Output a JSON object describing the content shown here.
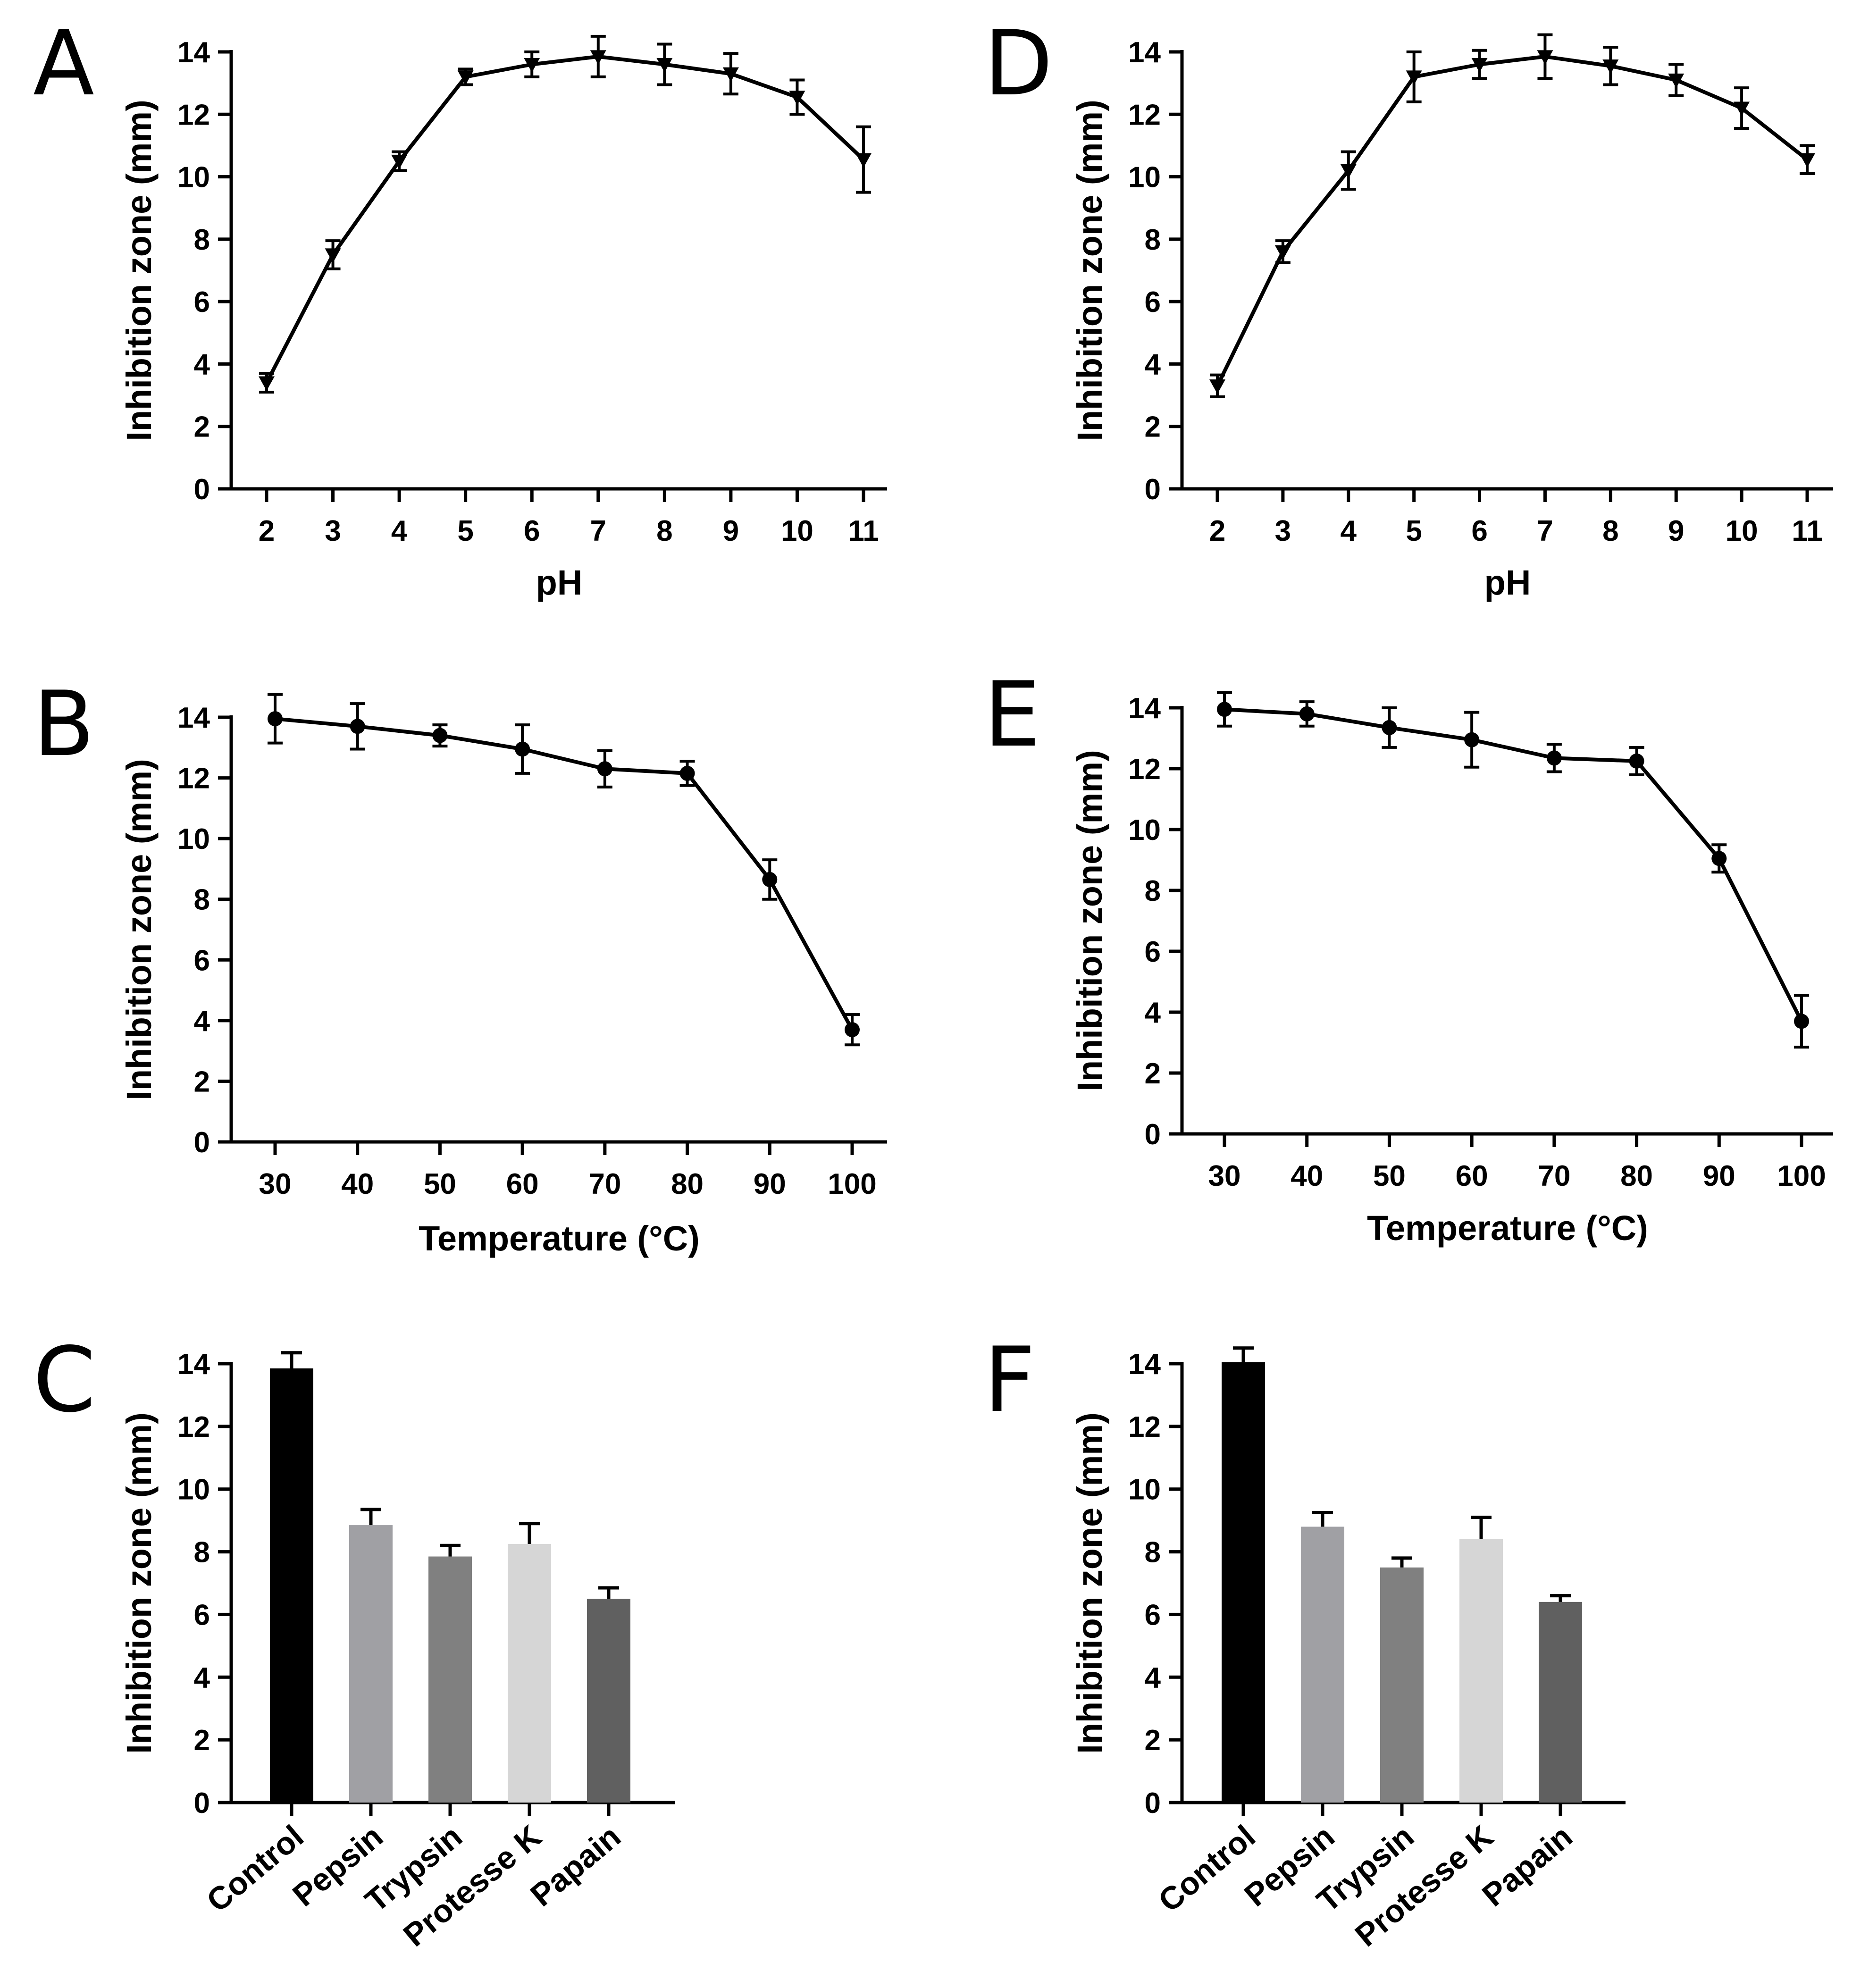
{
  "chart_data": [
    {
      "panel": "A",
      "type": "line",
      "marker": "triangle-down",
      "title": "",
      "xlabel": "pH",
      "ylabel": "Inhibition zone (mm)",
      "x": [
        2,
        3,
        4,
        5,
        6,
        7,
        8,
        9,
        10,
        11
      ],
      "values": [
        3.4,
        7.5,
        10.5,
        13.2,
        13.6,
        13.85,
        13.6,
        13.3,
        12.55,
        10.55
      ],
      "errors": [
        0.3,
        0.45,
        0.3,
        0.25,
        0.4,
        0.65,
        0.65,
        0.65,
        0.55,
        1.05
      ],
      "ylim": [
        0,
        14
      ],
      "yticks": [
        "0",
        "2",
        "4",
        "6",
        "8",
        "10",
        "12",
        "14"
      ],
      "xticks": [
        "2",
        "3",
        "4",
        "5",
        "6",
        "7",
        "8",
        "9",
        "10",
        "11"
      ]
    },
    {
      "panel": "B",
      "type": "line",
      "marker": "circle",
      "title": "",
      "xlabel": "Temperature (°C)",
      "ylabel": "Inhibition zone (mm)",
      "x": [
        30,
        40,
        50,
        60,
        70,
        80,
        90,
        100
      ],
      "values": [
        13.95,
        13.7,
        13.4,
        12.95,
        12.3,
        12.15,
        8.65,
        3.7
      ],
      "errors": [
        0.8,
        0.75,
        0.35,
        0.8,
        0.6,
        0.4,
        0.65,
        0.5
      ],
      "ylim": [
        0,
        14
      ],
      "yticks": [
        "0",
        "2",
        "4",
        "6",
        "8",
        "10",
        "12",
        "14"
      ],
      "xticks": [
        "30",
        "40",
        "50",
        "60",
        "70",
        "80",
        "90",
        "100"
      ]
    },
    {
      "panel": "C",
      "type": "bar",
      "title": "",
      "xlabel": "",
      "ylabel": "Inhibition zone (mm)",
      "categories": [
        "Control",
        "Pepsin",
        "Trypsin",
        "Protesse K",
        "Papain"
      ],
      "values": [
        13.85,
        8.85,
        7.85,
        8.25,
        6.5
      ],
      "errors": [
        0.5,
        0.5,
        0.35,
        0.65,
        0.35
      ],
      "colors": [
        "#000000",
        "#a0a0a4",
        "#808080",
        "#d6d6d6",
        "#606060"
      ],
      "ylim": [
        0,
        14
      ],
      "yticks": [
        "0",
        "2",
        "4",
        "6",
        "8",
        "10",
        "12",
        "14"
      ]
    },
    {
      "panel": "D",
      "type": "line",
      "marker": "triangle-down",
      "title": "",
      "xlabel": "pH",
      "ylabel": "Inhibition zone (mm)",
      "x": [
        2,
        3,
        4,
        5,
        6,
        7,
        8,
        9,
        10,
        11
      ],
      "values": [
        3.3,
        7.6,
        10.2,
        13.2,
        13.6,
        13.85,
        13.55,
        13.1,
        12.2,
        10.55
      ],
      "errors": [
        0.35,
        0.35,
        0.6,
        0.8,
        0.45,
        0.7,
        0.6,
        0.5,
        0.65,
        0.45
      ],
      "ylim": [
        0,
        14
      ],
      "yticks": [
        "0",
        "2",
        "4",
        "6",
        "8",
        "10",
        "12",
        "14"
      ],
      "xticks": [
        "2",
        "3",
        "4",
        "5",
        "6",
        "7",
        "8",
        "9",
        "10",
        "11"
      ]
    },
    {
      "panel": "E",
      "type": "line",
      "marker": "circle",
      "title": "",
      "xlabel": "Temperature (°C)",
      "ylabel": "Inhibition zone (mm)",
      "x": [
        30,
        40,
        50,
        60,
        70,
        80,
        90,
        100
      ],
      "values": [
        13.95,
        13.8,
        13.35,
        12.95,
        12.35,
        12.25,
        9.05,
        3.7
      ],
      "errors": [
        0.55,
        0.4,
        0.65,
        0.9,
        0.45,
        0.45,
        0.45,
        0.85
      ],
      "ylim": [
        0,
        14
      ],
      "yticks": [
        "0",
        "2",
        "4",
        "6",
        "8",
        "10",
        "12",
        "14"
      ],
      "xticks": [
        "30",
        "40",
        "50",
        "60",
        "70",
        "80",
        "90",
        "100"
      ]
    },
    {
      "panel": "F",
      "type": "bar",
      "title": "",
      "xlabel": "",
      "ylabel": "Inhibition zone (mm)",
      "categories": [
        "Control",
        "Pepsin",
        "Trypsin",
        "Protesse K",
        "Papain"
      ],
      "values": [
        14.05,
        8.8,
        7.5,
        8.4,
        6.4
      ],
      "errors": [
        0.45,
        0.45,
        0.3,
        0.7,
        0.2
      ],
      "colors": [
        "#000000",
        "#a0a0a4",
        "#808080",
        "#d6d6d6",
        "#606060"
      ],
      "ylim": [
        0,
        14
      ],
      "yticks": [
        "0",
        "2",
        "4",
        "6",
        "8",
        "10",
        "12",
        "14"
      ]
    }
  ]
}
